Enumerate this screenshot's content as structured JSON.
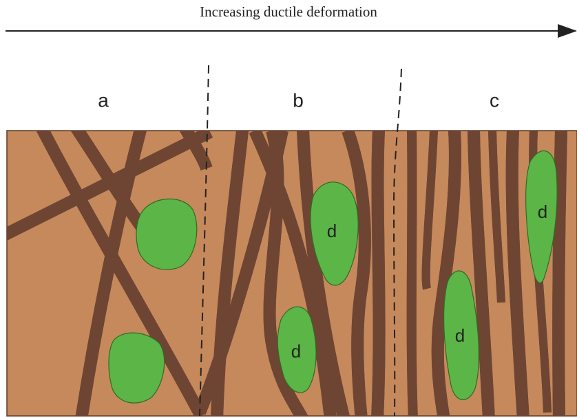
{
  "title": "Increasing ductile deformation",
  "zones": [
    {
      "label": "a"
    },
    {
      "label": "b"
    },
    {
      "label": "c"
    }
  ],
  "domains": [
    {
      "label": "d"
    },
    {
      "label": "d"
    },
    {
      "label": "d"
    },
    {
      "label": "d"
    }
  ]
}
